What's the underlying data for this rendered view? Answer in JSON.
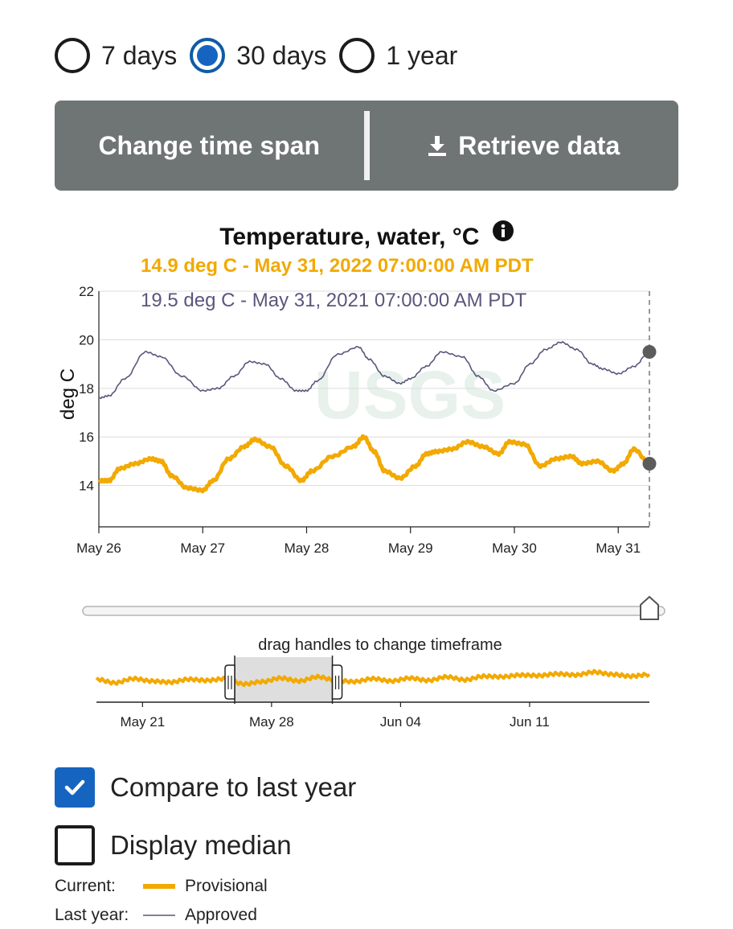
{
  "time_span": {
    "options": [
      {
        "label": "7 days",
        "selected": false
      },
      {
        "label": "30 days",
        "selected": true
      },
      {
        "label": "1 year",
        "selected": false
      }
    ]
  },
  "toolbar": {
    "change_label": "Change time span",
    "retrieve_label": "Retrieve data"
  },
  "chart_title": "Temperature, water, °C",
  "tooltip": {
    "current": "14.9 deg C - May 31, 2022 07:00:00 AM PDT",
    "last_year": "19.5 deg C - May 31, 2021 07:00:00 AM PDT"
  },
  "colors": {
    "current": "#f2a900",
    "last_year": "#5a567d",
    "accent": "#1565c0",
    "button_bar": "#6f7474"
  },
  "watermark": "USGS",
  "chart_data": [
    {
      "type": "line",
      "ylabel": "deg C",
      "ylim": [
        12.3,
        22
      ],
      "yticks": [
        14,
        16,
        18,
        20,
        22
      ],
      "grid": true,
      "x_tick_labels": [
        "May 26",
        "May 27",
        "May 28",
        "May 29",
        "May 30",
        "May 31"
      ],
      "x_ticks_days": [
        0,
        1,
        2,
        3,
        4,
        5
      ],
      "xlim_days": [
        0,
        5.3
      ],
      "series": [
        {
          "name": "Approved",
          "x_days": [
            0,
            0.1,
            0.25,
            0.45,
            0.6,
            0.8,
            1.0,
            1.15,
            1.3,
            1.45,
            1.6,
            1.75,
            1.9,
            2.0,
            2.1,
            2.3,
            2.5,
            2.6,
            2.75,
            2.9,
            3.0,
            3.15,
            3.3,
            3.5,
            3.65,
            3.8,
            4.0,
            4.15,
            4.3,
            4.45,
            4.6,
            4.75,
            4.85,
            5.0,
            5.15,
            5.3
          ],
          "values": [
            17.6,
            17.7,
            18.4,
            19.5,
            19.3,
            18.5,
            17.9,
            18.0,
            18.5,
            19.1,
            19.0,
            18.4,
            17.9,
            17.9,
            18.3,
            19.4,
            19.7,
            19.2,
            18.5,
            18.2,
            18.4,
            18.9,
            19.5,
            19.3,
            18.5,
            17.9,
            18.2,
            19.0,
            19.6,
            19.9,
            19.6,
            19.0,
            18.8,
            18.6,
            18.9,
            19.5
          ]
        },
        {
          "name": "Provisional",
          "x_days": [
            0,
            0.1,
            0.2,
            0.35,
            0.5,
            0.6,
            0.7,
            0.85,
            1.0,
            1.1,
            1.25,
            1.4,
            1.5,
            1.65,
            1.8,
            1.95,
            2.05,
            2.25,
            2.45,
            2.55,
            2.65,
            2.75,
            2.9,
            3.05,
            3.15,
            3.25,
            3.4,
            3.55,
            3.7,
            3.85,
            3.95,
            4.1,
            4.25,
            4.4,
            4.55,
            4.65,
            4.8,
            4.95,
            5.05,
            5.15,
            5.3
          ],
          "values": [
            14.2,
            14.2,
            14.7,
            14.9,
            15.1,
            15.0,
            14.4,
            13.9,
            13.8,
            14.2,
            15.1,
            15.6,
            15.9,
            15.6,
            14.8,
            14.2,
            14.6,
            15.2,
            15.6,
            16.0,
            15.4,
            14.6,
            14.3,
            14.8,
            15.3,
            15.4,
            15.5,
            15.8,
            15.6,
            15.3,
            15.8,
            15.7,
            14.8,
            15.1,
            15.2,
            14.9,
            15.0,
            14.6,
            14.9,
            15.5,
            14.9
          ]
        }
      ],
      "highlight": {
        "x_days": 5.3,
        "values": [
          19.5,
          14.9
        ]
      }
    },
    {
      "type": "line",
      "series_name": "Provisional",
      "x_tick_labels": [
        "May 21",
        "May 28",
        "Jun 04",
        "Jun 11"
      ],
      "x_ticks_days": [
        2.5,
        9.5,
        16.5,
        23.5
      ],
      "xlim_days": [
        0,
        30
      ],
      "hint": "drag handles to change timeframe",
      "brush_days": [
        7.5,
        12.8
      ],
      "x_days": [
        0,
        1,
        2,
        3,
        4,
        5,
        6,
        7,
        8,
        9,
        10,
        11,
        12,
        13,
        14,
        15,
        16,
        17,
        18,
        19,
        20,
        21,
        22,
        23,
        24,
        25,
        26,
        27,
        28,
        29,
        30
      ],
      "values": [
        14.8,
        14.2,
        14.9,
        14.5,
        14.3,
        14.8,
        14.6,
        14.9,
        14.0,
        14.4,
        15.0,
        14.5,
        15.2,
        14.6,
        14.4,
        14.9,
        14.5,
        15.0,
        14.6,
        15.2,
        14.7,
        15.3,
        15.2,
        15.5,
        15.4,
        15.7,
        15.5,
        16.0,
        15.6,
        15.3,
        15.6
      ],
      "ylim": [
        11,
        19
      ]
    }
  ],
  "options": {
    "compare_label": "Compare to last year",
    "compare_checked": true,
    "median_label": "Display median",
    "median_checked": false
  },
  "legend": {
    "current_title": "Current:",
    "current_label": "Provisional",
    "last_title": "Last year:",
    "last_label": "Approved"
  }
}
